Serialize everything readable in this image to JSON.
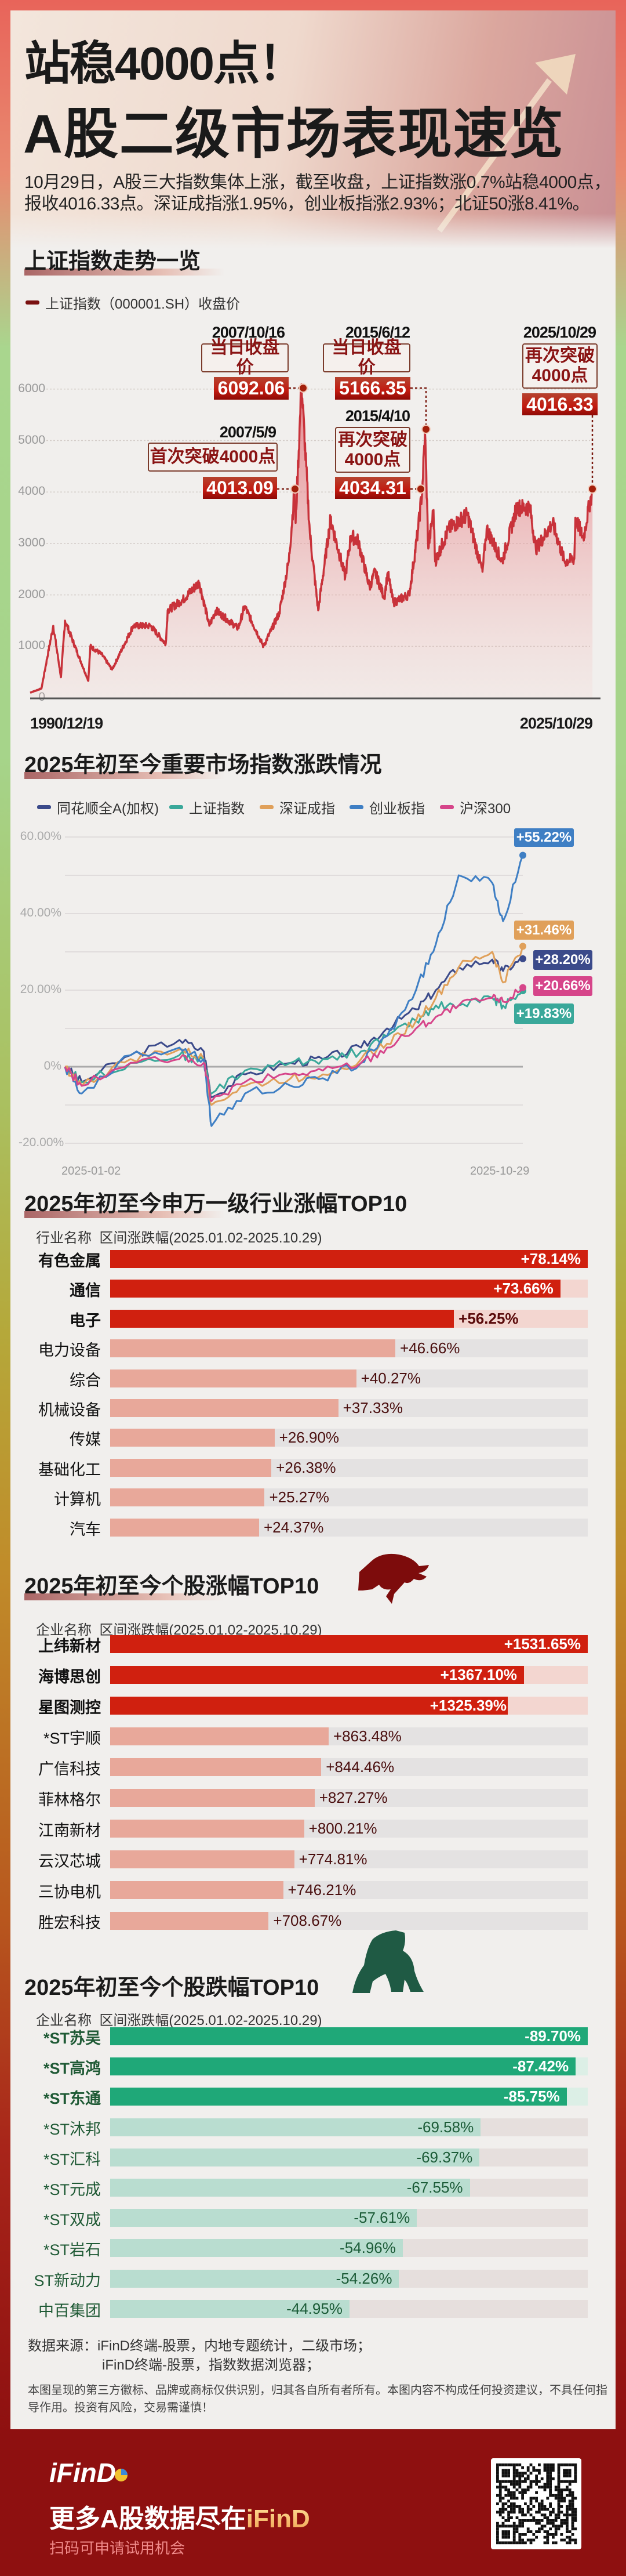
{
  "header": {
    "title_line1": "站稳4000点！",
    "title_line2": "A股二级市场表现速览",
    "lead": "10月29日，A股三大指数集体上涨，截至收盘，上证指数涨0.7%站稳4000点，报收4016.33点。深证成指涨1.95%，创业板指涨2.93%；北证50涨8.41%。"
  },
  "section1": {
    "title": "上证指数走势一览"
  },
  "section2": {
    "title": "2025年初至今重要市场指数涨跌情况"
  },
  "section3": {
    "title": "2025年初至今申万一级行业涨幅TOP10",
    "col_name": "行业名称",
    "col_value": "区间涨跌幅(2025.01.02-2025.10.29)"
  },
  "section4": {
    "title": "2025年初至今个股涨幅TOP10",
    "col_name": "企业名称",
    "col_value": "区间涨跌幅(2025.01.02-2025.10.29)",
    "icon": "bull-icon"
  },
  "section5": {
    "title": "2025年初至今个股跌幅TOP10",
    "col_name": "企业名称",
    "col_value": "区间涨跌幅(2025.01.02-2025.10.29)",
    "icon": "bear-icon"
  },
  "chart_data": [
    {
      "type": "area",
      "legend": "上证指数（000001.SH）收盘价",
      "color": "#c8323a",
      "x_labels": [
        "1990/12/19",
        "2025/10/29"
      ],
      "y_ticks": [
        "0",
        "1000",
        "2000",
        "3000",
        "4000",
        "5000",
        "6000"
      ],
      "ylim": [
        0,
        6000
      ],
      "grid": true,
      "points": [
        {
          "date": "1990-12-19",
          "value": 100
        },
        {
          "date": "1991-09-01",
          "value": 180
        },
        {
          "date": "1992-05-26",
          "value": 1400
        },
        {
          "date": "1992-11-17",
          "value": 400
        },
        {
          "date": "1993-02-16",
          "value": 1500
        },
        {
          "date": "1994-07-29",
          "value": 330
        },
        {
          "date": "1994-09-13",
          "value": 1000
        },
        {
          "date": "1995-05-22",
          "value": 850
        },
        {
          "date": "1996-01-19",
          "value": 550
        },
        {
          "date": "1997-05-12",
          "value": 1400
        },
        {
          "date": "1998-06-03",
          "value": 1400
        },
        {
          "date": "1999-05-17",
          "value": 1050
        },
        {
          "date": "1999-06-30",
          "value": 1700
        },
        {
          "date": "2000-06-01",
          "value": 1900
        },
        {
          "date": "2001-06-14",
          "value": 2240
        },
        {
          "date": "2002-01-29",
          "value": 1400
        },
        {
          "date": "2002-06-25",
          "value": 1700
        },
        {
          "date": "2003-11-13",
          "value": 1350
        },
        {
          "date": "2004-04-07",
          "value": 1780
        },
        {
          "date": "2005-06-06",
          "value": 1000
        },
        {
          "date": "2006-06-01",
          "value": 1650
        },
        {
          "date": "2006-12-31",
          "value": 2650
        },
        {
          "date": "2007-05-09",
          "value": 4013.09
        },
        {
          "date": "2007-06-04",
          "value": 3400
        },
        {
          "date": "2007-10-16",
          "value": 6092.06
        },
        {
          "date": "2008-04-22",
          "value": 3200
        },
        {
          "date": "2008-10-28",
          "value": 1700
        },
        {
          "date": "2009-08-04",
          "value": 3470
        },
        {
          "date": "2010-07-02",
          "value": 2350
        },
        {
          "date": "2010-11-08",
          "value": 3150
        },
        {
          "date": "2011-04-18",
          "value": 3050
        },
        {
          "date": "2012-01-06",
          "value": 2150
        },
        {
          "date": "2012-05-04",
          "value": 2450
        },
        {
          "date": "2012-12-03",
          "value": 1950
        },
        {
          "date": "2013-02-18",
          "value": 2430
        },
        {
          "date": "2013-06-25",
          "value": 1850
        },
        {
          "date": "2014-06-20",
          "value": 2010
        },
        {
          "date": "2014-12-31",
          "value": 3230
        },
        {
          "date": "2015-04-10",
          "value": 4034.31
        },
        {
          "date": "2015-06-12",
          "value": 5166.35
        },
        {
          "date": "2015-08-26",
          "value": 2900
        },
        {
          "date": "2015-12-22",
          "value": 3650
        },
        {
          "date": "2016-01-28",
          "value": 2650
        },
        {
          "date": "2016-11-29",
          "value": 3280
        },
        {
          "date": "2018-01-29",
          "value": 3560
        },
        {
          "date": "2019-01-04",
          "value": 2450
        },
        {
          "date": "2019-04-08",
          "value": 3290
        },
        {
          "date": "2020-03-23",
          "value": 2650
        },
        {
          "date": "2021-02-18",
          "value": 3700
        },
        {
          "date": "2021-12-13",
          "value": 3700
        },
        {
          "date": "2022-04-26",
          "value": 2890
        },
        {
          "date": "2023-05-09",
          "value": 3400
        },
        {
          "date": "2024-02-05",
          "value": 2650
        },
        {
          "date": "2024-09-13",
          "value": 2700
        },
        {
          "date": "2024-10-08",
          "value": 3500
        },
        {
          "date": "2025-04-07",
          "value": 3100
        },
        {
          "date": "2025-08-18",
          "value": 3750
        },
        {
          "date": "2025-10-29",
          "value": 4016.33
        }
      ],
      "annotations": [
        {
          "date": "2007/10/16",
          "label": "当日收盘价",
          "value": "6092.06"
        },
        {
          "date": "2007/5/9",
          "label": "首次突破4000点",
          "value": "4013.09"
        },
        {
          "date": "2015/6/12",
          "label": "当日收盘价",
          "value": "5166.35"
        },
        {
          "date": "2015/4/10",
          "label": "再次突破\n4000点",
          "value": "4034.31"
        },
        {
          "date": "2025/10/29",
          "label": "再次突破\n4000点",
          "value": "4016.33"
        }
      ]
    },
    {
      "type": "line",
      "x_labels": [
        "2025-01-02",
        "2025-10-29"
      ],
      "y_ticks": [
        "60.00%",
        "40.00%",
        "20.00%",
        "0%",
        "-20.00%"
      ],
      "ylim": [
        -20,
        60
      ],
      "grid": true,
      "legend_position": "top",
      "dates": [
        "2025-01-02",
        "2025-01-13",
        "2025-02-14",
        "2025-03-18",
        "2025-04-03",
        "2025-04-08",
        "2025-04-30",
        "2025-05-30",
        "2025-06-20",
        "2025-07-15",
        "2025-08-01",
        "2025-08-20",
        "2025-09-02",
        "2025-09-17",
        "2025-10-09",
        "2025-10-16",
        "2025-10-29"
      ],
      "series": [
        {
          "name": "同花顺全A(加权)",
          "color": "#3b4a8a",
          "end_label": "+28.20%",
          "values": [
            0,
            -4,
            3,
            7,
            4,
            -8,
            -2,
            1,
            2,
            5,
            10,
            15,
            20,
            26,
            28,
            25,
            28.2
          ]
        },
        {
          "name": "上证指数",
          "color": "#3aa89a",
          "end_label": "+19.83%",
          "values": [
            0,
            -4,
            1,
            3,
            1.5,
            -7,
            -1,
            1,
            2,
            4,
            8,
            12,
            16,
            16,
            18,
            16,
            19.83
          ]
        },
        {
          "name": "深证成指",
          "color": "#e0a05a",
          "end_label": "+31.46%",
          "values": [
            0,
            -5,
            2,
            4.5,
            2,
            -10,
            -5,
            -3,
            -2,
            2,
            6,
            12,
            18,
            26,
            30,
            22,
            31.46
          ]
        },
        {
          "name": "创业板指",
          "color": "#3f7fc4",
          "end_label": "+55.22%",
          "values": [
            0,
            -7,
            3,
            5,
            2,
            -15.5,
            -7,
            -5,
            -3,
            1,
            8,
            20,
            32,
            50,
            48,
            38,
            55.22
          ]
        },
        {
          "name": "沪深300",
          "color": "#d6458a",
          "end_label": "+20.66%",
          "values": [
            0,
            -5,
            1,
            2,
            1,
            -9,
            -4,
            -2,
            -1,
            1,
            5,
            10,
            13,
            16,
            18,
            17,
            20.66
          ]
        }
      ]
    },
    {
      "type": "bar",
      "categories": [
        "有色金属",
        "通信",
        "电子",
        "电力设备",
        "综合",
        "机械设备",
        "传媒",
        "基础化工",
        "计算机",
        "汽车"
      ],
      "values": [
        78.14,
        73.66,
        56.25,
        46.66,
        40.27,
        37.33,
        26.9,
        26.38,
        25.27,
        24.37
      ],
      "labels": [
        "+78.14%",
        "+73.66%",
        "+56.25%",
        "+46.66%",
        "+40.27%",
        "+37.33%",
        "+26.90%",
        "+26.38%",
        "+25.27%",
        "+24.37%"
      ]
    },
    {
      "type": "bar",
      "categories": [
        "上纬新材",
        "海博思创",
        "星图测控",
        "*ST宇顺",
        "广信科技",
        "菲林格尔",
        "江南新材",
        "云汉芯城",
        "三协电机",
        "胜宏科技"
      ],
      "values": [
        1531.65,
        1367.1,
        1325.39,
        863.48,
        844.46,
        827.27,
        800.21,
        774.81,
        746.21,
        708.67
      ],
      "labels": [
        "+1531.65%",
        "+1367.10%",
        "+1325.39%",
        "+863.48%",
        "+844.46%",
        "+827.27%",
        "+800.21%",
        "+774.81%",
        "+746.21%",
        "+708.67%"
      ]
    },
    {
      "type": "bar",
      "categories": [
        "*ST苏吴",
        "*ST高鸿",
        "*ST东通",
        "*ST沐邦",
        "*ST汇科",
        "*ST元成",
        "*ST双成",
        "*ST岩石",
        "ST新动力",
        "中百集团"
      ],
      "values": [
        -89.7,
        -87.42,
        -85.75,
        -69.58,
        -69.37,
        -67.55,
        -57.61,
        -54.96,
        -54.26,
        -44.95
      ],
      "labels": [
        "-89.70%",
        "-87.42%",
        "-85.75%",
        "-69.58%",
        "-69.37%",
        "-67.55%",
        "-57.61%",
        "-54.96%",
        "-54.26%",
        "-44.95%"
      ]
    }
  ],
  "footnote": {
    "source_line1": "数据来源：iFinD终端-股票，内地专题统计，二级市场；",
    "source_line2": "iFinD终端-股票，指数数据浏览器；",
    "disclaimer": "本图呈现的第三方徽标、品牌或商标仅供识别，归其各自所有者所有。本图内容不构成任何投资建议，不具任何指导作用。投资有风险，交易需谨慎！"
  },
  "footer": {
    "logo": "iFinD",
    "slogan_prefix": "更多A股数据尽在",
    "slogan_brand": "iFinD",
    "subtitle": "扫码可申请试用机会",
    "qr": "qr-code-icon"
  },
  "colors": {
    "up_strong": "#d0200f",
    "up_light": "#e8a89a",
    "down_strong": "#1fa878",
    "down_light": "#b9ddd0",
    "footer": "#8e1010"
  }
}
